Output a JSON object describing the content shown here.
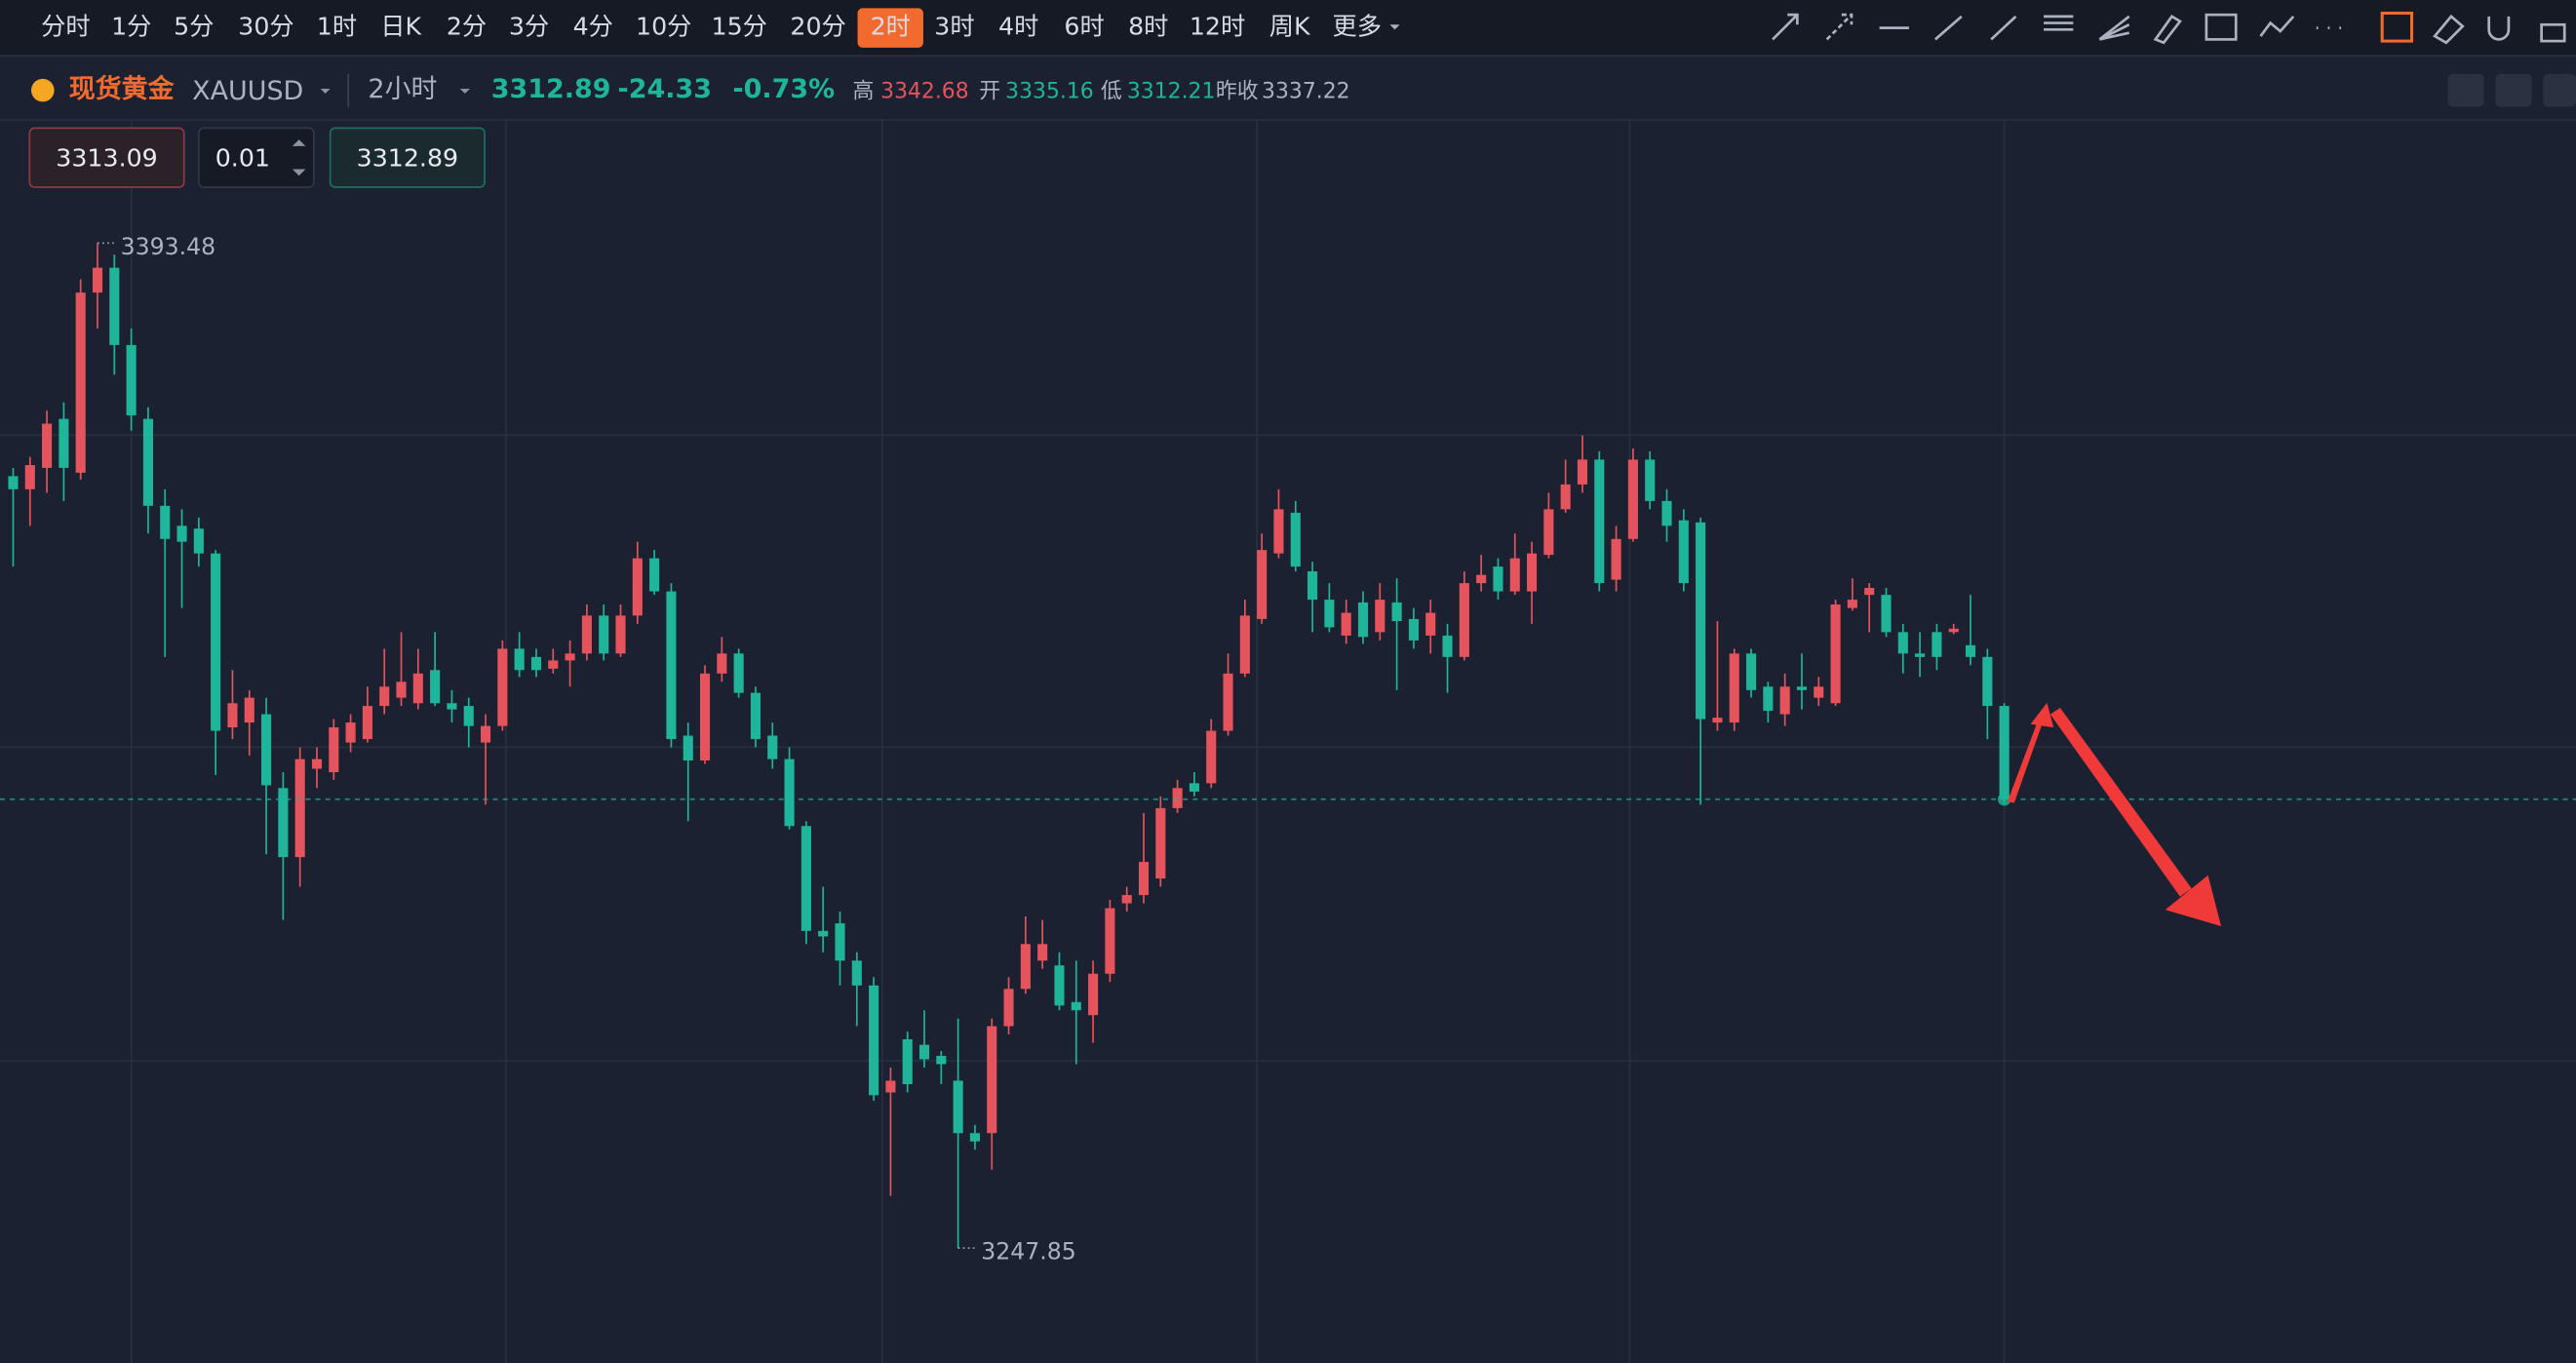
{
  "toolbar": {
    "periods": [
      "分时",
      "1分",
      "5分",
      "30分",
      "1时",
      "日K",
      "2分",
      "3分",
      "4分",
      "10分",
      "15分",
      "20分",
      "2时",
      "3时",
      "4时",
      "6时",
      "8时",
      "12时",
      "周K",
      "更多"
    ],
    "active_index": 12,
    "active_color": "#f26a2e"
  },
  "header": {
    "name": "现货黄金",
    "symbol": "XAUUSD",
    "period": "2小时",
    "price": "3312.89",
    "change": "-24.33",
    "change_pct": "-0.73%",
    "high_label": "高",
    "high": "3342.68",
    "open_label": "开",
    "open": "3335.16",
    "low_label": "低",
    "low": "3312.21",
    "prev_close_label": "昨收",
    "prev_close": "3337.22"
  },
  "order": {
    "sell": "3313.09",
    "qty": "0.01",
    "buy": "3312.89"
  },
  "chart_data": {
    "type": "candlestick",
    "up_color": "#e5535c",
    "down_color": "#1fb59a",
    "open": [
      3359.7,
      3357.8,
      3360.9,
      3368.0,
      3360.2,
      3386.3,
      3389.9,
      3378.7,
      3368.0,
      3355.4,
      3352.5,
      3352.1,
      3348.5,
      3323.3,
      3324.0,
      3325.2,
      3314.5,
      3304.5,
      3317.3,
      3316.8,
      3321.1,
      3321.6,
      3326.4,
      3327.6,
      3326.8,
      3331.6,
      3326.8,
      3326.4,
      3321.1,
      3323.5,
      3334.7,
      3333.5,
      3331.8,
      3333.0,
      3334.0,
      3339.5,
      3334.0,
      3339.5,
      3347.8,
      3343.0,
      3322.1,
      3318.5,
      3331.1,
      3334.0,
      3328.3,
      3322.1,
      3318.7,
      3309.0,
      3293.8,
      3294.9,
      3289.5,
      3285.9,
      3270.4,
      3278.1,
      3277.3,
      3275.7,
      3272.1,
      3264.5,
      3264.5,
      3280.0,
      3285.4,
      3289.5,
      3288.8,
      3283.5,
      3281.6,
      3287.6,
      3297.8,
      3299.0,
      3301.4,
      3311.6,
      3315.2,
      3315.2,
      3322.8,
      3331.1,
      3339.0,
      3348.5,
      3354.4,
      3345.9,
      3341.8,
      3336.6,
      3341.4,
      3337.1,
      3341.4,
      3339.0,
      3336.6,
      3336.6,
      3333.5,
      3344.2,
      3346.6,
      3343.0,
      3343.0,
      3348.3,
      3354.9,
      3358.5,
      3362.1,
      3344.7,
      3350.6,
      3362.1,
      3356.1,
      3353.3,
      3353.0,
      3324.0,
      3324.0,
      3334.0,
      3329.2,
      3325.2,
      3329.2,
      3327.6,
      3326.8,
      3340.6,
      3342.5,
      3342.5,
      3337.1,
      3334.0,
      3337.1,
      3337.1,
      3335.2,
      3333.5,
      3326.4
    ],
    "high": [
      3360.9,
      3362.5,
      3369.2,
      3370.4,
      3388.2,
      3393.48,
      3391.8,
      3381.1,
      3369.7,
      3357.8,
      3354.9,
      3353.7,
      3349.0,
      3331.6,
      3328.7,
      3327.6,
      3316.8,
      3320.4,
      3320.4,
      3324.5,
      3325.2,
      3329.2,
      3334.7,
      3337.1,
      3334.7,
      3337.1,
      3328.7,
      3327.6,
      3325.2,
      3335.9,
      3337.1,
      3334.7,
      3334.7,
      3335.9,
      3341.1,
      3341.1,
      3341.1,
      3350.2,
      3349.0,
      3344.2,
      3324.0,
      3332.3,
      3336.4,
      3334.7,
      3329.2,
      3324.0,
      3320.4,
      3309.7,
      3300.2,
      3296.6,
      3290.7,
      3287.1,
      3274.0,
      3279.2,
      3282.3,
      3276.4,
      3281.1,
      3265.7,
      3281.1,
      3287.1,
      3295.9,
      3295.4,
      3290.7,
      3289.5,
      3289.5,
      3298.3,
      3300.2,
      3310.9,
      3313.3,
      3315.7,
      3316.8,
      3324.5,
      3334.0,
      3341.8,
      3351.4,
      3357.8,
      3356.1,
      3347.3,
      3344.2,
      3341.8,
      3343.0,
      3344.2,
      3344.9,
      3340.6,
      3341.8,
      3338.3,
      3345.9,
      3348.3,
      3347.8,
      3351.4,
      3350.2,
      3357.3,
      3362.1,
      3365.6,
      3363.3,
      3352.5,
      3363.7,
      3363.3,
      3357.8,
      3354.9,
      3353.7,
      3338.7,
      3334.7,
      3334.7,
      3329.9,
      3331.1,
      3334.0,
      3330.6,
      3341.8,
      3344.9,
      3344.2,
      3343.5,
      3338.3,
      3337.1,
      3338.3,
      3338.3,
      3342.5,
      3334.7,
      3326.8
    ],
    "low": [
      3346.6,
      3352.5,
      3357.3,
      3356.1,
      3359.2,
      3381.1,
      3374.4,
      3366.3,
      3351.4,
      3333.5,
      3340.6,
      3346.6,
      3316.4,
      3321.6,
      3319.2,
      3304.9,
      3295.4,
      3300.2,
      3314.5,
      3315.7,
      3319.7,
      3321.1,
      3325.2,
      3326.4,
      3325.9,
      3326.4,
      3324.0,
      3320.4,
      3312.1,
      3322.8,
      3330.6,
      3330.6,
      3331.1,
      3329.2,
      3333.0,
      3333.0,
      3333.5,
      3338.3,
      3342.5,
      3320.4,
      3309.7,
      3318.0,
      3329.9,
      3327.6,
      3320.4,
      3317.3,
      3308.5,
      3291.9,
      3290.7,
      3285.9,
      3280.0,
      3269.2,
      3255.4,
      3270.4,
      3274.0,
      3271.6,
      3247.85,
      3262.1,
      3259.2,
      3278.8,
      3284.7,
      3288.3,
      3282.3,
      3274.5,
      3277.6,
      3286.4,
      3296.6,
      3297.8,
      3300.2,
      3310.9,
      3313.3,
      3314.5,
      3322.1,
      3330.6,
      3338.3,
      3347.8,
      3345.9,
      3337.1,
      3337.1,
      3335.4,
      3335.4,
      3335.9,
      3328.7,
      3334.7,
      3334.0,
      3328.3,
      3333.0,
      3343.0,
      3341.8,
      3342.5,
      3338.3,
      3347.8,
      3354.4,
      3357.3,
      3343.0,
      3343.0,
      3350.2,
      3354.9,
      3350.2,
      3343.0,
      3312.1,
      3322.8,
      3322.8,
      3327.6,
      3324.0,
      3323.5,
      3325.9,
      3326.4,
      3326.4,
      3340.2,
      3337.1,
      3336.4,
      3331.1,
      3330.6,
      3331.6,
      3336.8,
      3332.3,
      3321.6,
      3312.21
    ],
    "close": [
      3357.8,
      3361.3,
      3367.3,
      3360.9,
      3386.3,
      3389.9,
      3378.7,
      3368.5,
      3355.4,
      3350.6,
      3350.2,
      3348.5,
      3322.8,
      3326.8,
      3327.6,
      3314.9,
      3304.5,
      3318.7,
      3318.7,
      3323.3,
      3324.0,
      3326.4,
      3329.2,
      3329.9,
      3331.1,
      3326.8,
      3325.9,
      3323.5,
      3323.5,
      3334.7,
      3331.6,
      3331.6,
      3333.0,
      3334.0,
      3339.5,
      3334.0,
      3339.5,
      3347.8,
      3343.0,
      3321.6,
      3318.5,
      3331.1,
      3334.0,
      3328.3,
      3321.6,
      3318.7,
      3309.0,
      3293.8,
      3293.0,
      3289.5,
      3285.9,
      3270.0,
      3272.1,
      3271.6,
      3275.2,
      3274.5,
      3264.5,
      3263.3,
      3280.0,
      3285.4,
      3291.9,
      3291.9,
      3283.0,
      3282.3,
      3287.6,
      3297.1,
      3299.0,
      3303.8,
      3311.6,
      3314.5,
      3314.0,
      3322.8,
      3331.1,
      3339.5,
      3349.0,
      3354.9,
      3346.6,
      3341.8,
      3337.8,
      3339.9,
      3336.4,
      3341.8,
      3338.7,
      3335.9,
      3339.9,
      3333.5,
      3344.2,
      3345.4,
      3343.0,
      3347.8,
      3348.5,
      3354.9,
      3358.5,
      3362.1,
      3344.2,
      3350.6,
      3362.1,
      3356.1,
      3352.5,
      3344.2,
      3324.5,
      3324.7,
      3334.0,
      3328.7,
      3325.7,
      3329.2,
      3328.7,
      3329.2,
      3341.1,
      3341.8,
      3343.5,
      3337.1,
      3334.0,
      3333.5,
      3333.5,
      3337.6,
      3333.5,
      3326.4,
      3312.89
    ]
  }
}
